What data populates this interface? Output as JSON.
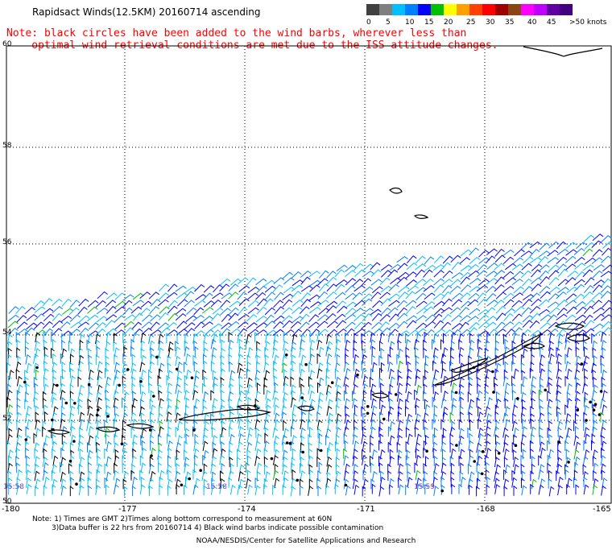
{
  "header": {
    "title": "Rapidsact Winds(12.5KM) 20160714 ascending"
  },
  "note": {
    "line1": "Note: black circles have been added to the wind barbs, wherever less than",
    "line2": "    optimal wind retrieval conditions are met due to the ISS attitude changes."
  },
  "colorbar": {
    "unit": "knots",
    "labels": [
      "0",
      "5",
      "10",
      "15",
      "20",
      "25",
      "30",
      "35",
      "40",
      "45",
      ">50 knots"
    ],
    "colors": [
      "#404040",
      "#7f7f7f",
      "#00bfff",
      "#0080ff",
      "#0000ff",
      "#00c000",
      "#ffff00",
      "#ffa000",
      "#ff4000",
      "#ff0000",
      "#a00000",
      "#8b4513",
      "#ff00ff",
      "#c000ff",
      "#6000a0",
      "#400080"
    ]
  },
  "map": {
    "lat_labels": [
      "60",
      "58",
      "56",
      "54",
      "52",
      "50"
    ],
    "lon_labels": [
      "-180",
      "-177",
      "-174",
      "-171",
      "-168",
      "-165"
    ],
    "time_labels": [
      "15:58",
      "15:58",
      "15:59"
    ]
  },
  "footer": {
    "line1": "Note: 1) Times are GMT 2)Times along bottom correspond to measurement at 60N",
    "line2": "3)Data buffer is 22 hrs from 20160714 4) Black wind barbs indicate possible contamination",
    "credit": "NOAA/NESDIS/Center for Satellite Applications and Research"
  }
}
